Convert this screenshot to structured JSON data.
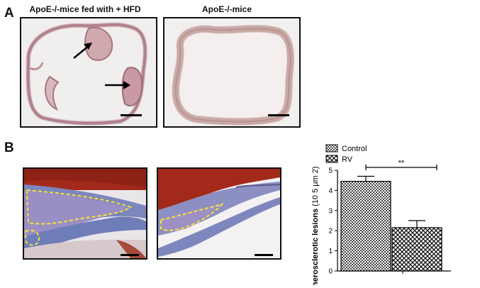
{
  "panel_a": {
    "letter": "A",
    "image_left_title": "ApoE-/-mice fed with + HFD",
    "image_right_title": "ApoE-/-mice"
  },
  "panel_b": {
    "letter": "B"
  },
  "chart_data": {
    "type": "bar",
    "categories": [
      "Control",
      "RV"
    ],
    "values": [
      4.45,
      2.15
    ],
    "errors": [
      0.25,
      0.35
    ],
    "ylabel_main": "Atherosclerotic lesions",
    "ylabel_unit": "(10 5 μm 2)",
    "ylim": [
      0,
      5
    ],
    "yticks": [
      "0",
      "1",
      "2",
      "3",
      "4",
      "5"
    ],
    "legend": [
      "Control",
      "RV"
    ],
    "legend_position": "top-left",
    "significance": "**",
    "grid": false
  },
  "colors": {
    "stain_pink": "#c29aa4",
    "stain_red": "#a32a1a",
    "stain_blue": "#7d86bd",
    "outline_yellow": "#f2e23a"
  }
}
